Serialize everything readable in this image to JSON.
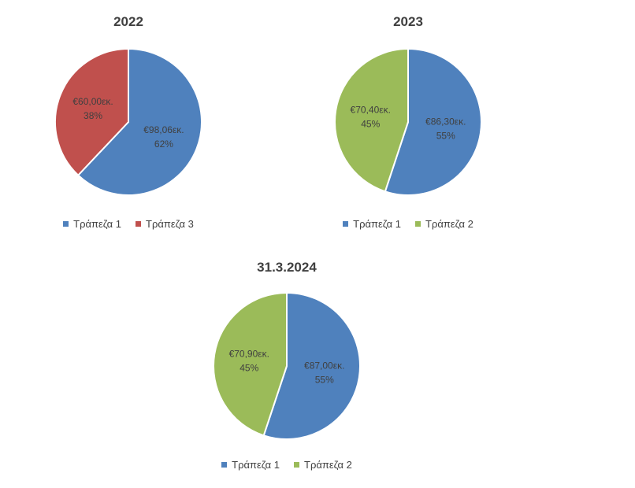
{
  "chart_data": [
    {
      "type": "pie",
      "title": "2022",
      "series": [
        {
          "name": "Τράπεζα 1",
          "value": 98.06,
          "value_label": "€98,06εκ.",
          "percent_label": "62%",
          "color": "#4F81BD"
        },
        {
          "name": "Τράπεζα 3",
          "value": 60.0,
          "value_label": "€60,00εκ.",
          "percent_label": "38%",
          "color": "#C0504D"
        }
      ],
      "legend_position": "bottom"
    },
    {
      "type": "pie",
      "title": "2023",
      "series": [
        {
          "name": "Τράπεζα 1",
          "value": 86.3,
          "value_label": "€86,30εκ.",
          "percent_label": "55%",
          "color": "#4F81BD"
        },
        {
          "name": "Τράπεζα 2",
          "value": 70.4,
          "value_label": "€70,40εκ.",
          "percent_label": "45%",
          "color": "#9BBB59"
        }
      ],
      "legend_position": "bottom"
    },
    {
      "type": "pie",
      "title": "31.3.2024",
      "series": [
        {
          "name": "Τράπεζα 1",
          "value": 87.0,
          "value_label": "€87,00εκ.",
          "percent_label": "55%",
          "color": "#4F81BD"
        },
        {
          "name": "Τράπεζα 2",
          "value": 70.9,
          "value_label": "€70,90εκ.",
          "percent_label": "45%",
          "color": "#9BBB59"
        }
      ],
      "legend_position": "bottom"
    }
  ]
}
